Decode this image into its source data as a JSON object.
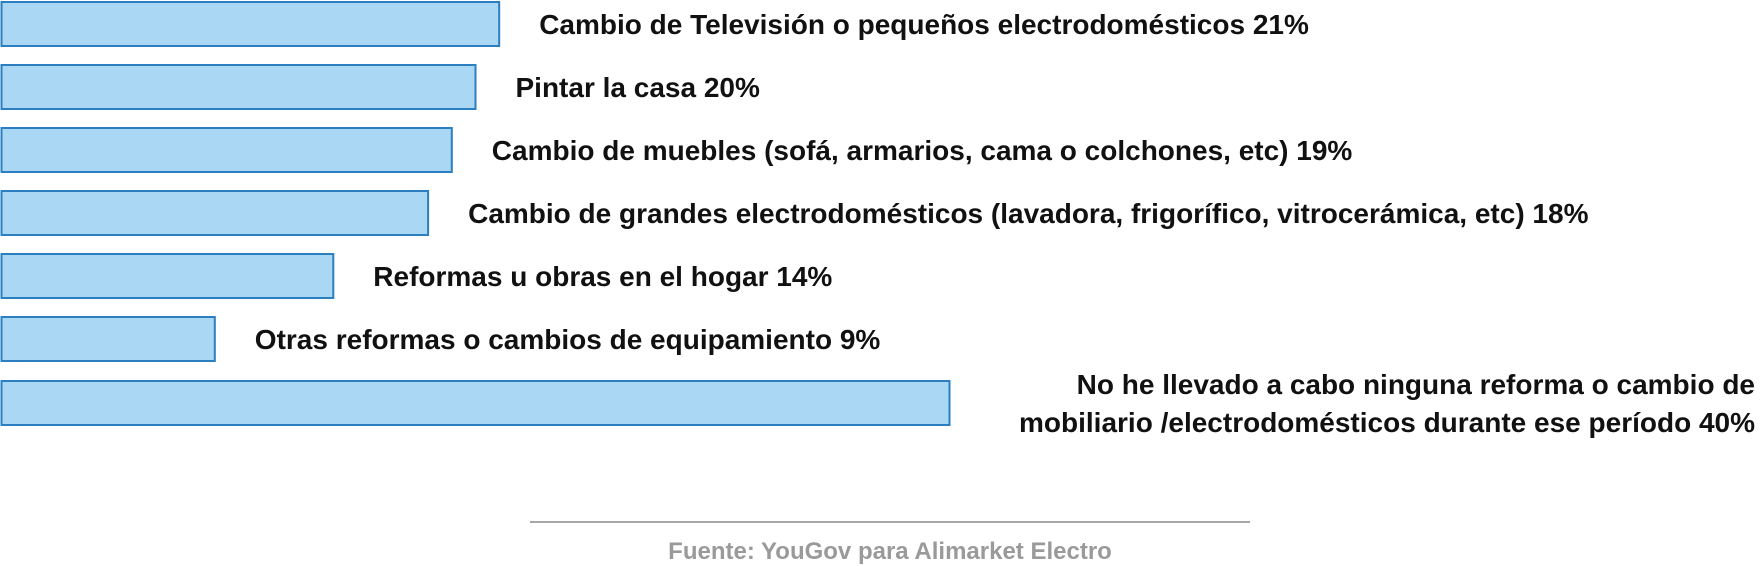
{
  "chart_data": {
    "type": "bar",
    "orientation": "horizontal",
    "unit": "%",
    "categories": [
      "Cambio de Televisión o pequeños electrodomésticos",
      "Pintar la casa",
      "Cambio de muebles (sofá, armarios, cama o colchones, etc)",
      "Cambio de grandes electrodomésticos (lavadora, frigorífico, vitrocerámica, etc)",
      "Reformas u obras en el hogar",
      "Otras reformas o cambios de equipamiento",
      "No he llevado a cabo ninguna reforma o cambio de mobiliario /electrodomésticos durante ese período"
    ],
    "values": [
      21,
      20,
      19,
      18,
      14,
      9,
      40
    ],
    "labels": [
      [
        "Cambio de Televisión o pequeños electrodomésticos 21%"
      ],
      [
        "Pintar la casa 20%"
      ],
      [
        "Cambio de muebles (sofá, armarios, cama o colchones, etc) 19%"
      ],
      [
        "Cambio de grandes electrodomésticos (lavadora, frigorífico, vitrocerámica, etc) 18%"
      ],
      [
        "Reformas u obras en el hogar 14%"
      ],
      [
        "Otras reformas o cambios de equipamiento 9%"
      ],
      [
        "No he llevado a cabo ninguna reforma o cambio de",
        "mobiliario /electrodomésticos durante ese período 40%"
      ]
    ],
    "bar_color": "#a9d7f4",
    "bar_border_color": "#2b7fc1",
    "label_color": "#111111",
    "xlim": [
      0,
      40
    ],
    "grid": false,
    "legend": "none"
  },
  "source": {
    "text": "Fuente: YouGov para Alimarket Electro",
    "color": "#9a9a9a",
    "rule_color": "#8a8a8a"
  }
}
